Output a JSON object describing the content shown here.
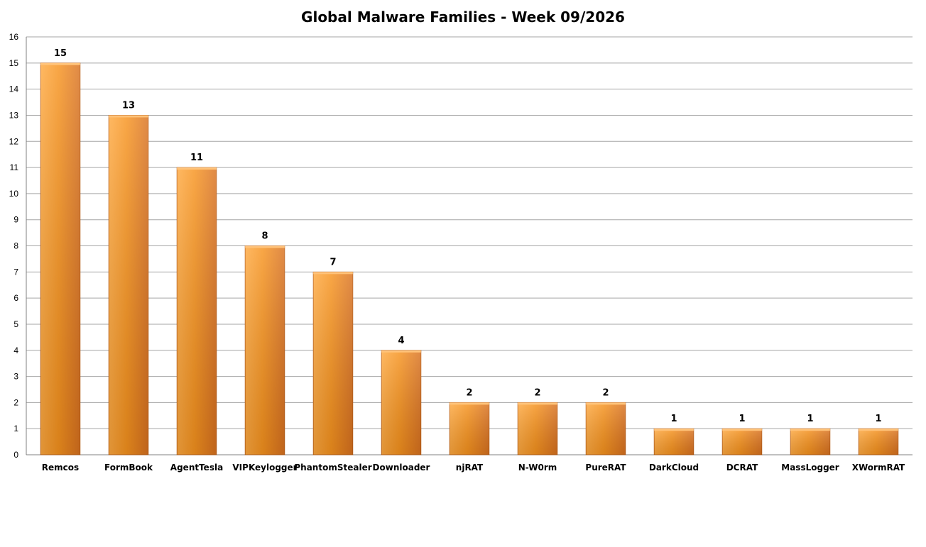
{
  "chart_data": {
    "type": "bar",
    "title": "Global Malware Families - Week 09/2026",
    "categories": [
      "Remcos",
      "FormBook",
      "AgentTesla",
      "VIPKeylogger",
      "PhantomStealer",
      "Downloader",
      "njRAT",
      "N-W0rm",
      "PureRAT",
      "DarkCloud",
      "DCRAT",
      "MassLogger",
      "XWormRAT"
    ],
    "values": [
      15,
      13,
      11,
      8,
      7,
      4,
      2,
      2,
      2,
      1,
      1,
      1,
      1
    ],
    "xlabel": "",
    "ylabel": "",
    "ylim": [
      0,
      16
    ],
    "yticks": [
      0,
      1,
      2,
      3,
      4,
      5,
      6,
      7,
      8,
      9,
      10,
      11,
      12,
      13,
      14,
      15,
      16
    ],
    "grid": true,
    "legend": "none",
    "data_labels": true,
    "colors": {
      "bar_light": "#ffa940",
      "bar_mid": "#f7931e",
      "bar_dark": "#d9711f",
      "bar_edge": "#b55a14",
      "grid": "#a6a6a6",
      "axis": "#808080"
    }
  }
}
